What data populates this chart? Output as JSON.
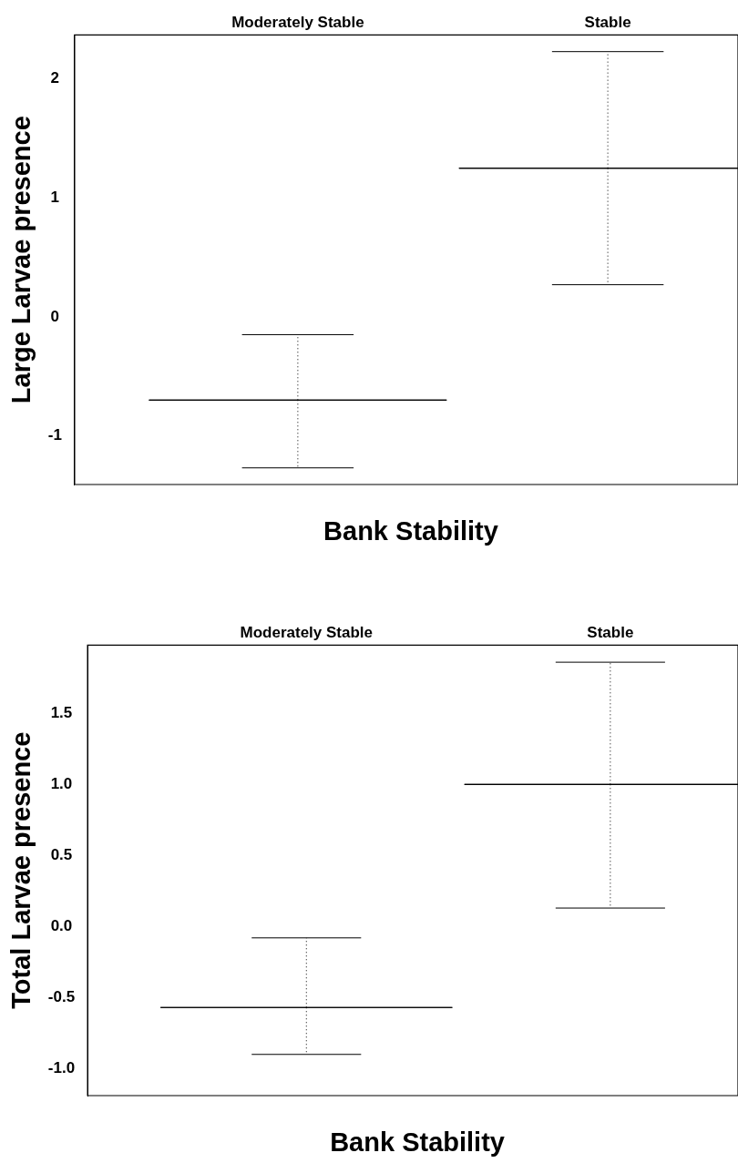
{
  "chart_data": [
    {
      "type": "box",
      "xlabel": "Bank Stability",
      "ylabel": "Large Larvae presence",
      "categories": [
        "Moderately Stable",
        "Stable"
      ],
      "series": [
        {
          "color": "#000000",
          "boxes": [
            {
              "low": -1.27,
              "q1": -0.7,
              "median": -0.7,
              "q3": -0.7,
              "high": -0.15
            },
            {
              "low": 0.27,
              "q1": 1.25,
              "median": 1.25,
              "q3": 1.25,
              "high": 2.23
            }
          ]
        }
      ],
      "ylim": [
        -1.41,
        2.37
      ],
      "yticks": [
        -1,
        0,
        1,
        2
      ]
    },
    {
      "type": "box",
      "xlabel": "Bank Stability",
      "ylabel": "Total Larvae presence",
      "categories": [
        "Moderately Stable",
        "Stable"
      ],
      "series": [
        {
          "color": "#000000",
          "boxes": [
            {
              "low": -0.9,
              "q1": -0.57,
              "median": -0.57,
              "q3": -0.57,
              "high": -0.08
            },
            {
              "low": 0.13,
              "q1": 1.0,
              "median": 1.0,
              "q3": 1.0,
              "high": 1.86
            }
          ]
        }
      ],
      "ylim": [
        -1.19,
        1.98
      ],
      "yticks": [
        {
          "value": -1,
          "label": "-1.0"
        },
        {
          "value": -0.5,
          "label": "-0.5"
        },
        {
          "value": 0,
          "label": "0.0"
        },
        {
          "value": 0.5,
          "label": "0.5"
        },
        {
          "value": 1,
          "label": "1.0"
        },
        {
          "value": 1.5,
          "label": "1.5"
        }
      ]
    }
  ]
}
